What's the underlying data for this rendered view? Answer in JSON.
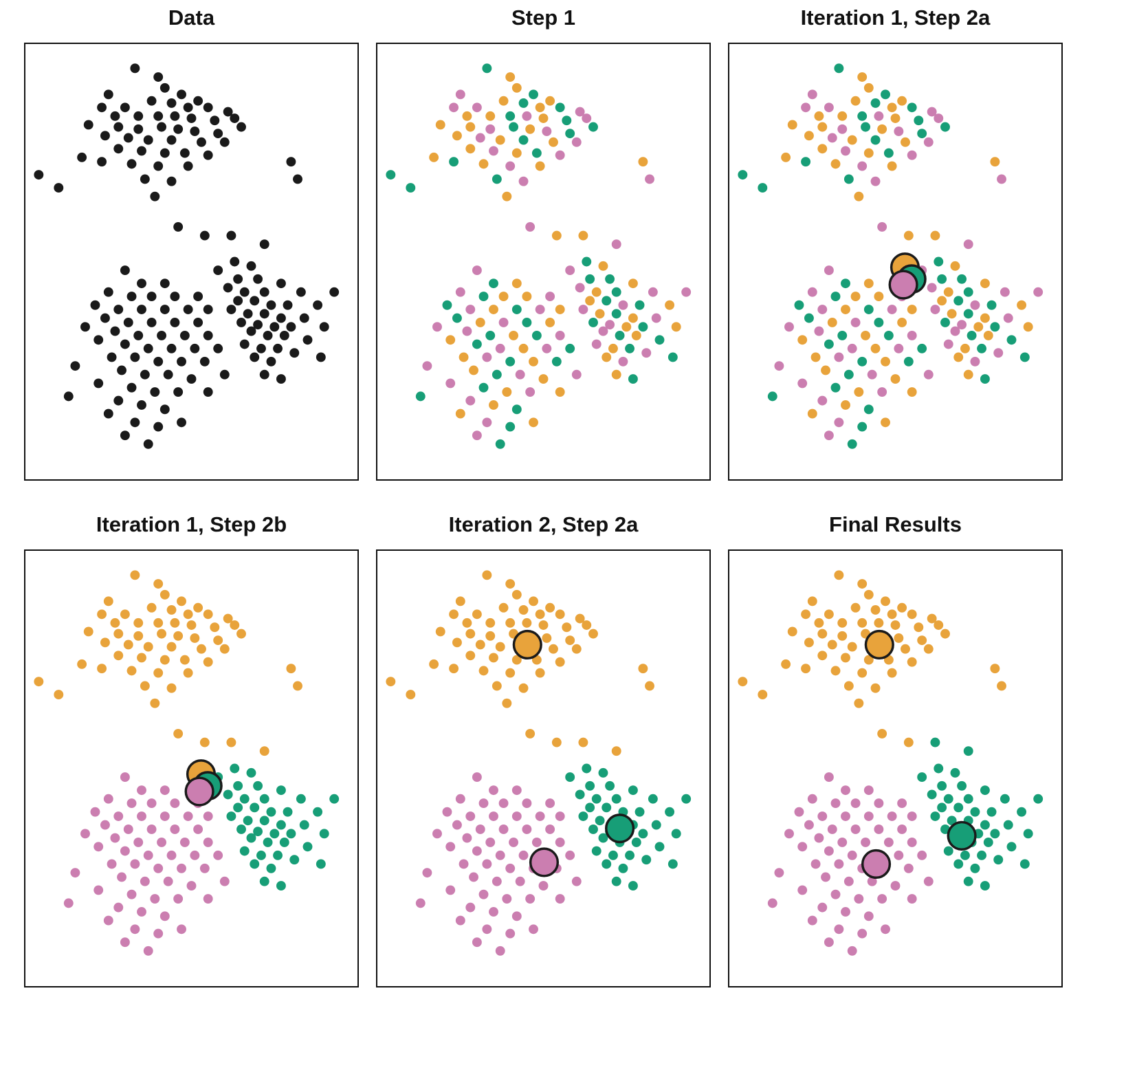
{
  "chart_data": {
    "type": "scatter",
    "description": "Six-panel illustration of the K-means clustering algorithm with K=3 on a two-dimensional point cloud. No axes, ticks or legends are drawn; panels show colored cluster assignments and large black-outlined circles for cluster centroids.",
    "axes": "none",
    "grid": "off",
    "palette": {
      "o": "#E8A33B",
      "g": "#179E77",
      "p": "#CB7EB0",
      "k": "#1A1A1A"
    },
    "point_radius_px": 7,
    "centroid_radius_px": 20,
    "panels": [
      {
        "title": "Data",
        "assign": "all_black",
        "centroids": "none"
      },
      {
        "title": "Step 1",
        "assign": "step1",
        "centroids": "none"
      },
      {
        "title": "Iteration 1, Step 2a",
        "assign": "step1",
        "centroids": "old"
      },
      {
        "title": "Iteration 1, Step 2b",
        "assign": "iter1b",
        "centroids": "old"
      },
      {
        "title": "Iteration 2, Step 2a",
        "assign": "iter1b",
        "centroids": "new"
      },
      {
        "title": "Final Results",
        "assign": "final",
        "centroids": "final"
      }
    ],
    "centroid_sets": {
      "old": [
        [
          0.529,
          0.513,
          "o"
        ],
        [
          0.549,
          0.54,
          "g"
        ],
        [
          0.524,
          0.553,
          "p"
        ]
      ],
      "new": [
        [
          0.452,
          0.215,
          "o"
        ],
        [
          0.73,
          0.638,
          "g"
        ],
        [
          0.502,
          0.716,
          "p"
        ]
      ],
      "final": [
        [
          0.452,
          0.215,
          "o"
        ],
        [
          0.7,
          0.655,
          "g"
        ],
        [
          0.442,
          0.72,
          "p"
        ]
      ]
    },
    "assignments": {
      "step1": "gopogoppogogpoogpogpoopgopgopogopgopogpogopogpgopgopoopgopggopogpogpgopogopgpogopgogpogpopgogppgopgoopgpogpogopgoppgogpogpopgopgogpogpopgopgpogopgopgop",
      "iter1b": [
        [
          "o",
          55
        ],
        [
          "g",
          39
        ],
        [
          "p",
          57
        ]
      ],
      "final": [
        [
          "o",
          53
        ],
        [
          "g",
          41
        ],
        [
          "p",
          57
        ]
      ]
    },
    "points": [
      [
        0.33,
        0.055
      ],
      [
        0.4,
        0.075
      ],
      [
        0.25,
        0.115
      ],
      [
        0.42,
        0.1
      ],
      [
        0.47,
        0.115
      ],
      [
        0.52,
        0.13
      ],
      [
        0.23,
        0.145
      ],
      [
        0.3,
        0.145
      ],
      [
        0.38,
        0.13
      ],
      [
        0.44,
        0.135
      ],
      [
        0.49,
        0.145
      ],
      [
        0.55,
        0.145
      ],
      [
        0.61,
        0.155
      ],
      [
        0.27,
        0.165
      ],
      [
        0.34,
        0.165
      ],
      [
        0.4,
        0.165
      ],
      [
        0.45,
        0.165
      ],
      [
        0.5,
        0.17
      ],
      [
        0.57,
        0.175
      ],
      [
        0.63,
        0.17
      ],
      [
        0.19,
        0.185
      ],
      [
        0.28,
        0.19
      ],
      [
        0.34,
        0.195
      ],
      [
        0.41,
        0.19
      ],
      [
        0.46,
        0.195
      ],
      [
        0.51,
        0.2
      ],
      [
        0.58,
        0.205
      ],
      [
        0.24,
        0.21
      ],
      [
        0.31,
        0.215
      ],
      [
        0.37,
        0.22
      ],
      [
        0.44,
        0.22
      ],
      [
        0.53,
        0.225
      ],
      [
        0.6,
        0.225
      ],
      [
        0.65,
        0.19
      ],
      [
        0.28,
        0.24
      ],
      [
        0.35,
        0.245
      ],
      [
        0.42,
        0.25
      ],
      [
        0.48,
        0.25
      ],
      [
        0.55,
        0.255
      ],
      [
        0.17,
        0.26
      ],
      [
        0.23,
        0.27
      ],
      [
        0.32,
        0.275
      ],
      [
        0.4,
        0.28
      ],
      [
        0.49,
        0.28
      ],
      [
        0.36,
        0.31
      ],
      [
        0.44,
        0.315
      ],
      [
        0.1,
        0.33
      ],
      [
        0.8,
        0.27
      ],
      [
        0.82,
        0.31
      ],
      [
        0.04,
        0.3
      ],
      [
        0.39,
        0.35
      ],
      [
        0.46,
        0.42
      ],
      [
        0.54,
        0.44
      ],
      [
        0.62,
        0.44
      ],
      [
        0.72,
        0.46
      ],
      [
        0.63,
        0.5
      ],
      [
        0.68,
        0.51
      ],
      [
        0.58,
        0.52
      ],
      [
        0.64,
        0.54
      ],
      [
        0.7,
        0.54
      ],
      [
        0.77,
        0.55
      ],
      [
        0.61,
        0.56
      ],
      [
        0.66,
        0.57
      ],
      [
        0.72,
        0.57
      ],
      [
        0.83,
        0.57
      ],
      [
        0.64,
        0.59
      ],
      [
        0.69,
        0.59
      ],
      [
        0.74,
        0.6
      ],
      [
        0.79,
        0.6
      ],
      [
        0.88,
        0.6
      ],
      [
        0.62,
        0.61
      ],
      [
        0.67,
        0.62
      ],
      [
        0.72,
        0.62
      ],
      [
        0.77,
        0.63
      ],
      [
        0.84,
        0.63
      ],
      [
        0.65,
        0.64
      ],
      [
        0.7,
        0.645
      ],
      [
        0.75,
        0.65
      ],
      [
        0.8,
        0.65
      ],
      [
        0.9,
        0.65
      ],
      [
        0.68,
        0.66
      ],
      [
        0.73,
        0.67
      ],
      [
        0.78,
        0.67
      ],
      [
        0.85,
        0.68
      ],
      [
        0.66,
        0.69
      ],
      [
        0.71,
        0.7
      ],
      [
        0.76,
        0.7
      ],
      [
        0.81,
        0.71
      ],
      [
        0.69,
        0.72
      ],
      [
        0.74,
        0.73
      ],
      [
        0.89,
        0.72
      ],
      [
        0.72,
        0.76
      ],
      [
        0.77,
        0.77
      ],
      [
        0.93,
        0.57
      ],
      [
        0.3,
        0.52
      ],
      [
        0.35,
        0.55
      ],
      [
        0.42,
        0.55
      ],
      [
        0.25,
        0.57
      ],
      [
        0.32,
        0.58
      ],
      [
        0.38,
        0.58
      ],
      [
        0.45,
        0.58
      ],
      [
        0.52,
        0.58
      ],
      [
        0.21,
        0.6
      ],
      [
        0.28,
        0.61
      ],
      [
        0.35,
        0.61
      ],
      [
        0.42,
        0.61
      ],
      [
        0.49,
        0.61
      ],
      [
        0.55,
        0.61
      ],
      [
        0.24,
        0.63
      ],
      [
        0.31,
        0.64
      ],
      [
        0.38,
        0.64
      ],
      [
        0.45,
        0.64
      ],
      [
        0.52,
        0.64
      ],
      [
        0.18,
        0.65
      ],
      [
        0.27,
        0.66
      ],
      [
        0.34,
        0.67
      ],
      [
        0.41,
        0.67
      ],
      [
        0.48,
        0.67
      ],
      [
        0.55,
        0.67
      ],
      [
        0.22,
        0.68
      ],
      [
        0.3,
        0.69
      ],
      [
        0.37,
        0.7
      ],
      [
        0.44,
        0.7
      ],
      [
        0.51,
        0.7
      ],
      [
        0.58,
        0.7
      ],
      [
        0.26,
        0.72
      ],
      [
        0.33,
        0.72
      ],
      [
        0.4,
        0.73
      ],
      [
        0.47,
        0.73
      ],
      [
        0.54,
        0.73
      ],
      [
        0.15,
        0.74
      ],
      [
        0.29,
        0.75
      ],
      [
        0.36,
        0.76
      ],
      [
        0.43,
        0.76
      ],
      [
        0.5,
        0.77
      ],
      [
        0.22,
        0.78
      ],
      [
        0.32,
        0.79
      ],
      [
        0.39,
        0.8
      ],
      [
        0.46,
        0.8
      ],
      [
        0.13,
        0.81
      ],
      [
        0.28,
        0.82
      ],
      [
        0.35,
        0.83
      ],
      [
        0.42,
        0.84
      ],
      [
        0.25,
        0.85
      ],
      [
        0.33,
        0.87
      ],
      [
        0.4,
        0.88
      ],
      [
        0.47,
        0.87
      ],
      [
        0.3,
        0.9
      ],
      [
        0.37,
        0.92
      ],
      [
        0.55,
        0.8
      ],
      [
        0.6,
        0.76
      ]
    ]
  }
}
